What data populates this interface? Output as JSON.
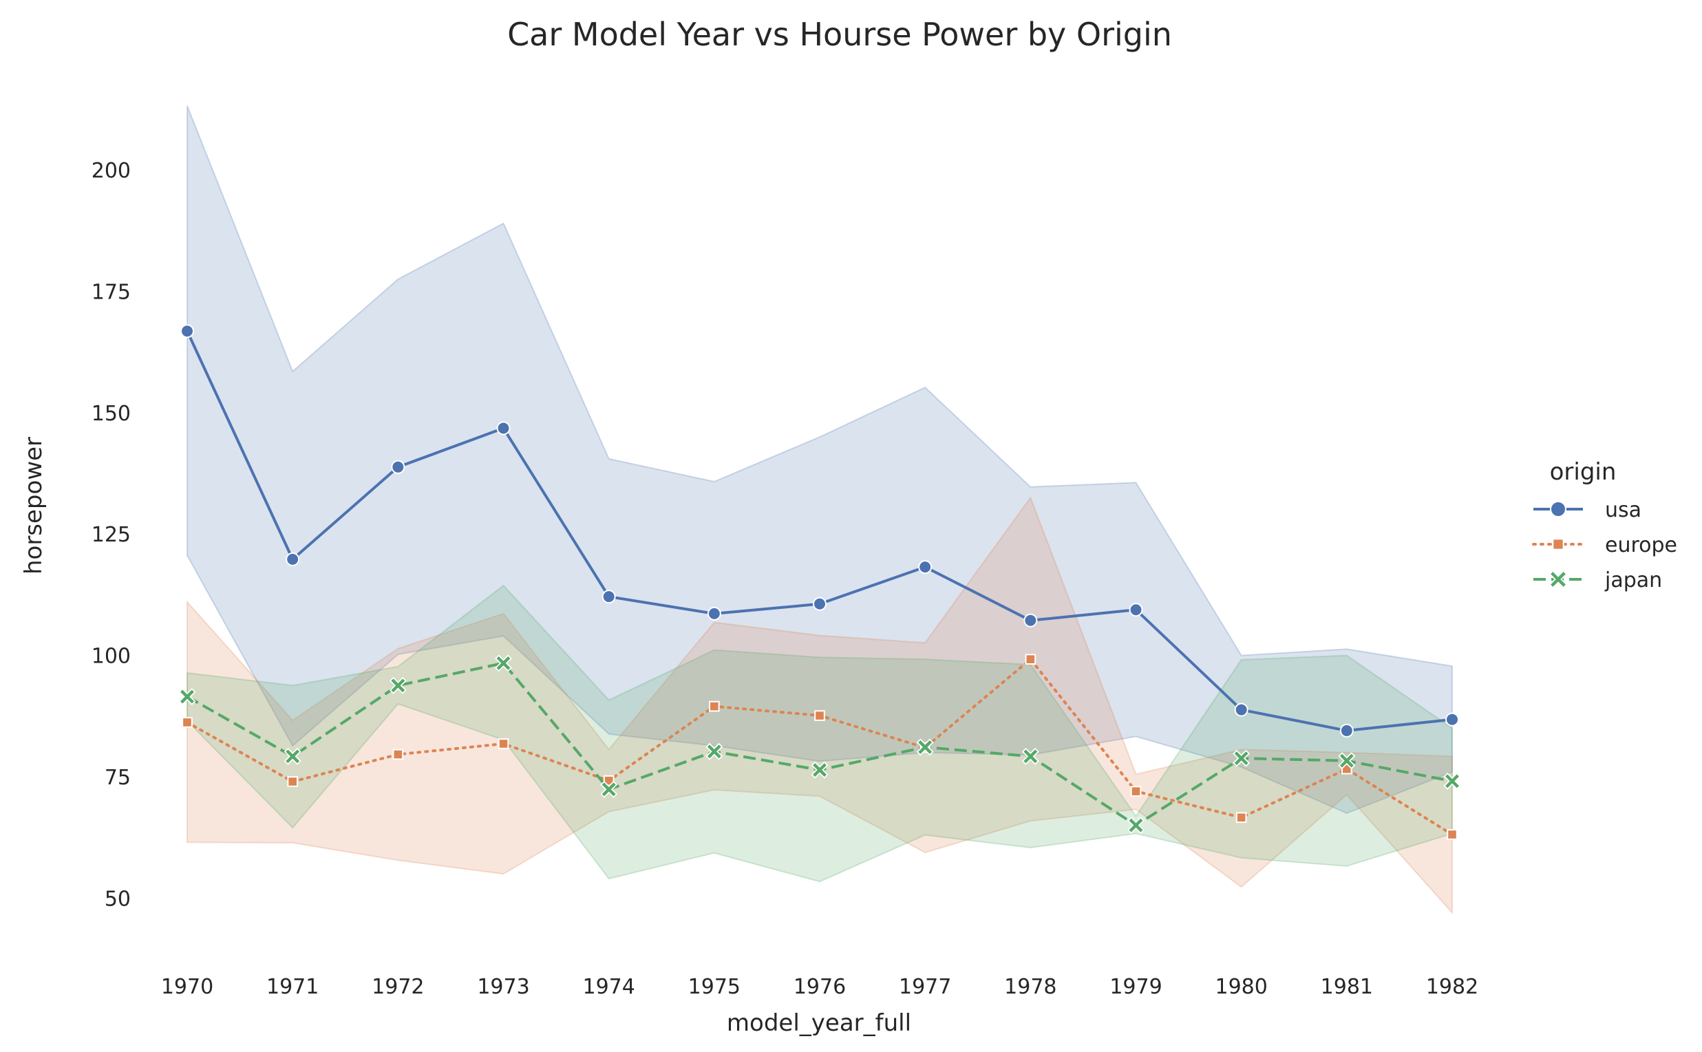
{
  "chart_data": {
    "type": "line",
    "title": "Car Model Year vs Hourse Power by Origin",
    "xlabel": "model_year_full",
    "ylabel": "horsepower",
    "x": [
      1970,
      1971,
      1972,
      1973,
      1974,
      1975,
      1976,
      1977,
      1978,
      1979,
      1980,
      1981,
      1982
    ],
    "ylim": [
      38,
      218
    ],
    "yticks": [
      50,
      75,
      100,
      125,
      150,
      175,
      200
    ],
    "grid": false,
    "legend": {
      "title": "origin",
      "placement": "right"
    },
    "series": [
      {
        "name": "usa",
        "color": "#4c72b0",
        "line_style": "solid",
        "marker": "circle",
        "values": [
          166.8,
          119.8,
          138.8,
          146.8,
          112.1,
          108.6,
          110.6,
          118.2,
          107.2,
          109.4,
          88.8,
          84.5,
          86.8
        ],
        "ci_low": [
          120.6,
          81.4,
          100.2,
          104.0,
          83.8,
          81.4,
          78.2,
          80.0,
          79.5,
          83.3,
          77.0,
          67.5,
          76.0
        ],
        "ci_high": [
          213.2,
          158.5,
          177.5,
          189.0,
          140.5,
          135.8,
          145.0,
          155.2,
          134.7,
          135.6,
          100.0,
          101.3,
          97.8
        ]
      },
      {
        "name": "europe",
        "color": "#dd8452",
        "line_style": "dotted",
        "marker": "square",
        "values": [
          86.2,
          74.0,
          79.6,
          81.8,
          74.2,
          89.5,
          87.6,
          81.0,
          99.2,
          72.0,
          66.6,
          76.6,
          63.1
        ],
        "ci_low": [
          61.5,
          61.4,
          57.8,
          55.0,
          67.8,
          72.3,
          71.0,
          59.4,
          65.9,
          68.3,
          52.3,
          71.3,
          47.0
        ],
        "ci_high": [
          111.0,
          86.6,
          101.4,
          108.6,
          80.6,
          106.8,
          104.1,
          102.6,
          132.5,
          75.5,
          80.6,
          80.0,
          79.2
        ]
      },
      {
        "name": "japan",
        "color": "#55a868",
        "line_style": "dashed",
        "marker": "x",
        "values": [
          91.5,
          79.2,
          93.8,
          98.4,
          72.4,
          80.2,
          76.4,
          81.1,
          79.2,
          65.0,
          78.8,
          78.3,
          74.1
        ],
        "ci_low": [
          86.5,
          64.5,
          90.0,
          82.6,
          54.0,
          59.3,
          53.4,
          63.0,
          60.4,
          63.3,
          58.3,
          56.6,
          63.3
        ],
        "ci_high": [
          96.4,
          93.8,
          97.7,
          114.4,
          90.8,
          101.1,
          99.6,
          99.2,
          98.1,
          66.9,
          99.1,
          100.0,
          85.0
        ]
      }
    ]
  }
}
